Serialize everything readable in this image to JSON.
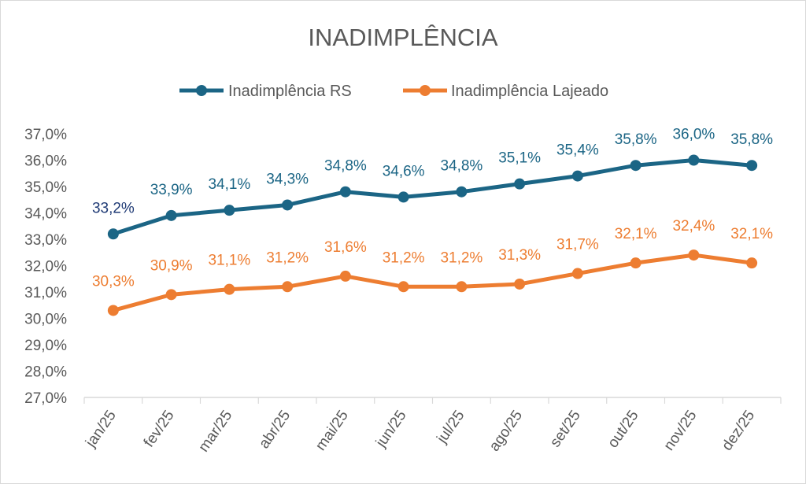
{
  "chart_data": {
    "type": "line",
    "title": "INADIMPLÊNCIA",
    "xlabel": "",
    "ylabel": "",
    "categories": [
      "jan/25",
      "fev/25",
      "mar/25",
      "abr/25",
      "mai/25",
      "jun/25",
      "jul/25",
      "ago/25",
      "set/25",
      "out/25",
      "nov/25",
      "dez/25"
    ],
    "ylim": [
      27.0,
      37.0
    ],
    "yticks": [
      27.0,
      28.0,
      29.0,
      30.0,
      31.0,
      32.0,
      33.0,
      34.0,
      35.0,
      36.0,
      37.0
    ],
    "ytick_labels": [
      "27,0%",
      "28,0%",
      "29,0%",
      "30,0%",
      "31,0%",
      "32,0%",
      "33,0%",
      "34,0%",
      "35,0%",
      "36,0%",
      "37,0%"
    ],
    "grid": false,
    "legend_position": "top-center",
    "series": [
      {
        "name": "Inadimplência RS",
        "color": "#1b6585",
        "values": [
          33.2,
          33.9,
          34.1,
          34.3,
          34.8,
          34.6,
          34.8,
          35.1,
          35.4,
          35.8,
          36.0,
          35.8
        ],
        "labels": [
          "33,2%",
          "33,9%",
          "34,1%",
          "34,3%",
          "34,8%",
          "34,6%",
          "34,8%",
          "35,1%",
          "35,4%",
          "35,8%",
          "36,0%",
          "35,8%"
        ]
      },
      {
        "name": "Inadimplência Lajeado",
        "color": "#ed7d31",
        "values": [
          30.3,
          30.9,
          31.1,
          31.2,
          31.6,
          31.2,
          31.2,
          31.3,
          31.7,
          32.1,
          32.4,
          32.1
        ],
        "labels": [
          "30,3%",
          "30,9%",
          "31,1%",
          "31,2%",
          "31,6%",
          "31,2%",
          "31,2%",
          "31,3%",
          "31,7%",
          "32,1%",
          "32,4%",
          "32,1%"
        ]
      }
    ]
  }
}
